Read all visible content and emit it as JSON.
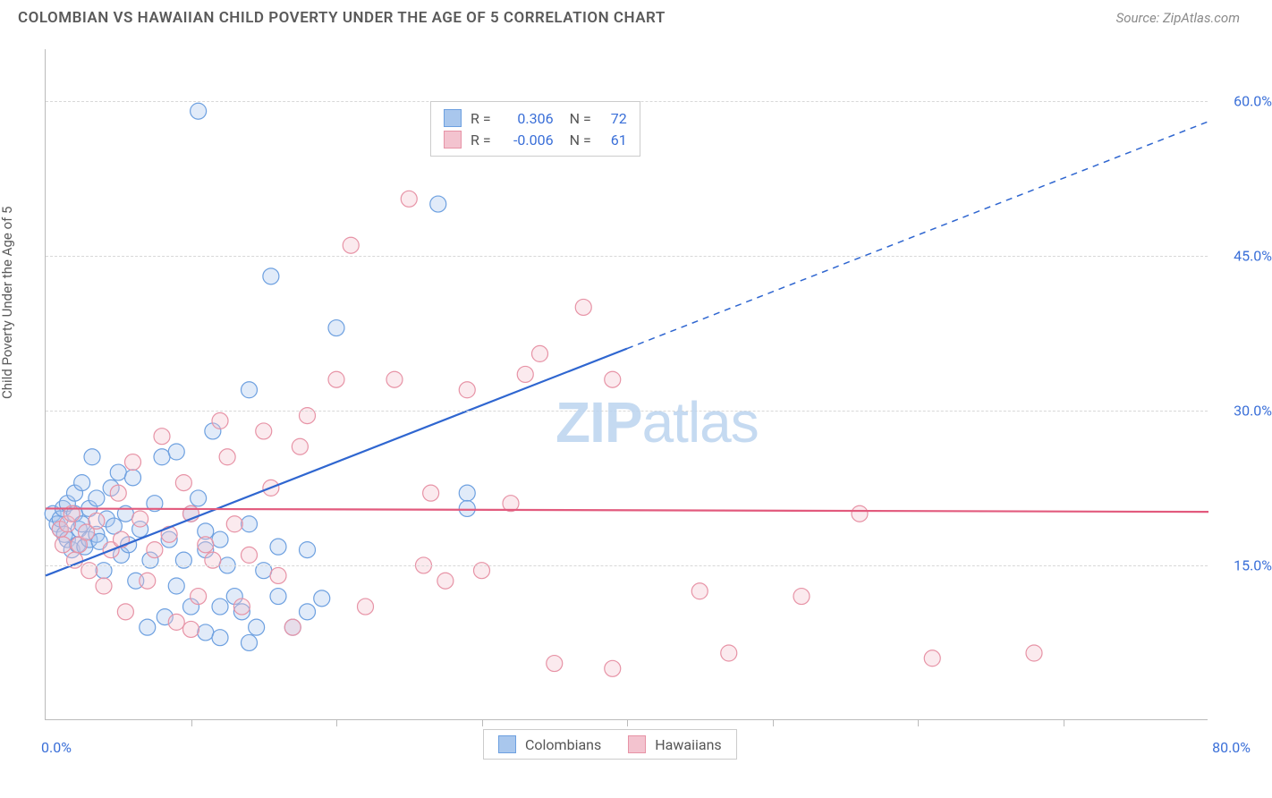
{
  "title": "COLOMBIAN VS HAWAIIAN CHILD POVERTY UNDER THE AGE OF 5 CORRELATION CHART",
  "source_label": "Source: ZipAtlas.com",
  "y_axis_label": "Child Poverty Under the Age of 5",
  "watermark_bold": "ZIP",
  "watermark_rest": "atlas",
  "chart": {
    "type": "scatter",
    "background_color": "#ffffff",
    "grid_color": "#d8d8d8",
    "axis_color": "#bbbbbb",
    "tick_label_color": "#3a6fd8",
    "xlim": [
      0,
      80
    ],
    "ylim": [
      0,
      65
    ],
    "y_ticks": [
      15,
      30,
      45,
      60
    ],
    "y_tick_labels": [
      "15.0%",
      "30.0%",
      "45.0%",
      "60.0%"
    ],
    "x_ticks": [
      10,
      20,
      30,
      40,
      50,
      60,
      70
    ],
    "x_min_label": "0.0%",
    "x_max_label": "80.0%",
    "marker_radius": 9,
    "marker_stroke_width": 1.2,
    "marker_fill_opacity": 0.35,
    "series": [
      {
        "name": "Colombians",
        "color_fill": "#a9c7ed",
        "color_stroke": "#6da0e0",
        "R": "0.306",
        "N": "72",
        "trend": {
          "slope": 0.55,
          "intercept": 14.0,
          "x_solid_end": 40,
          "x_dash_end": 80,
          "color": "#2f66d0",
          "width": 2.2
        },
        "points": [
          [
            0.5,
            20
          ],
          [
            0.8,
            19
          ],
          [
            1,
            18.5
          ],
          [
            1,
            19.5
          ],
          [
            1.2,
            20.5
          ],
          [
            1.3,
            18
          ],
          [
            1.5,
            21
          ],
          [
            1.5,
            17.5
          ],
          [
            1.8,
            16.5
          ],
          [
            2,
            20
          ],
          [
            2,
            22
          ],
          [
            2.2,
            17
          ],
          [
            2.3,
            18.5
          ],
          [
            2.5,
            23
          ],
          [
            2.5,
            19
          ],
          [
            2.7,
            16.8
          ],
          [
            3,
            20.5
          ],
          [
            3,
            17.5
          ],
          [
            3.2,
            25.5
          ],
          [
            3.5,
            18
          ],
          [
            3.5,
            21.5
          ],
          [
            3.7,
            17.3
          ],
          [
            4,
            14.5
          ],
          [
            4.2,
            19.5
          ],
          [
            4.5,
            22.5
          ],
          [
            4.7,
            18.8
          ],
          [
            5,
            24
          ],
          [
            5.2,
            16
          ],
          [
            5.5,
            20
          ],
          [
            5.7,
            17
          ],
          [
            6,
            23.5
          ],
          [
            6.2,
            13.5
          ],
          [
            6.5,
            18.5
          ],
          [
            7,
            9
          ],
          [
            7.2,
            15.5
          ],
          [
            7.5,
            21
          ],
          [
            8,
            25.5
          ],
          [
            8.2,
            10
          ],
          [
            8.5,
            17.5
          ],
          [
            9,
            13
          ],
          [
            9,
            26
          ],
          [
            9.5,
            15.5
          ],
          [
            10,
            11
          ],
          [
            10,
            20
          ],
          [
            10.5,
            21.5
          ],
          [
            10.5,
            59
          ],
          [
            11,
            8.5
          ],
          [
            11,
            16.5
          ],
          [
            11.5,
            28
          ],
          [
            12,
            11
          ],
          [
            12,
            8
          ],
          [
            12,
            17.5
          ],
          [
            12.5,
            15
          ],
          [
            13,
            12
          ],
          [
            13.5,
            10.5
          ],
          [
            14,
            7.5
          ],
          [
            14,
            19
          ],
          [
            14,
            32
          ],
          [
            14.5,
            9
          ],
          [
            15,
            14.5
          ],
          [
            15.5,
            43
          ],
          [
            16,
            12
          ],
          [
            16,
            16.8
          ],
          [
            17,
            9
          ],
          [
            18,
            10.5
          ],
          [
            18,
            16.5
          ],
          [
            19,
            11.8
          ],
          [
            20,
            38
          ],
          [
            27,
            50
          ],
          [
            29,
            22
          ],
          [
            29,
            20.5
          ],
          [
            11,
            18.3
          ]
        ]
      },
      {
        "name": "Hawaiians",
        "color_fill": "#f3c3cf",
        "color_stroke": "#e793a6",
        "R": "-0.006",
        "N": "61",
        "trend": {
          "slope": -0.004,
          "intercept": 20.5,
          "x_solid_end": 80,
          "x_dash_end": 80,
          "color": "#e25a7d",
          "width": 2.2
        },
        "points": [
          [
            1,
            18.5
          ],
          [
            1.2,
            17
          ],
          [
            1.5,
            19
          ],
          [
            2,
            15.5
          ],
          [
            2.3,
            17
          ],
          [
            2.8,
            18.2
          ],
          [
            3,
            14.5
          ],
          [
            3.5,
            19.3
          ],
          [
            4,
            13
          ],
          [
            4.5,
            16.5
          ],
          [
            5,
            22
          ],
          [
            5.2,
            17.5
          ],
          [
            5.5,
            10.5
          ],
          [
            6,
            25
          ],
          [
            6.5,
            19.5
          ],
          [
            7,
            13.5
          ],
          [
            7.5,
            16.5
          ],
          [
            8,
            27.5
          ],
          [
            8.5,
            18
          ],
          [
            9,
            9.5
          ],
          [
            9.5,
            23
          ],
          [
            10,
            20
          ],
          [
            10,
            8.8
          ],
          [
            10.5,
            12
          ],
          [
            11,
            17
          ],
          [
            11.5,
            15.5
          ],
          [
            12,
            29
          ],
          [
            12.5,
            25.5
          ],
          [
            13,
            19
          ],
          [
            13.5,
            11
          ],
          [
            14,
            16
          ],
          [
            15,
            28
          ],
          [
            15.5,
            22.5
          ],
          [
            16,
            14
          ],
          [
            17,
            9
          ],
          [
            17.5,
            26.5
          ],
          [
            18,
            29.5
          ],
          [
            20,
            33
          ],
          [
            21,
            46
          ],
          [
            22,
            11
          ],
          [
            24,
            33
          ],
          [
            25,
            50.5
          ],
          [
            26,
            15
          ],
          [
            26.5,
            22
          ],
          [
            27.5,
            13.5
          ],
          [
            29,
            32
          ],
          [
            30,
            14.5
          ],
          [
            32,
            21
          ],
          [
            33,
            33.5
          ],
          [
            34,
            35.5
          ],
          [
            35,
            5.5
          ],
          [
            37,
            40
          ],
          [
            39,
            33
          ],
          [
            39,
            5
          ],
          [
            45,
            12.5
          ],
          [
            47,
            6.5
          ],
          [
            52,
            12
          ],
          [
            56,
            20
          ],
          [
            61,
            6
          ],
          [
            68,
            6.5
          ],
          [
            1.8,
            20
          ]
        ]
      }
    ],
    "legend_top": {
      "r_label": "R =",
      "n_label": "N ="
    },
    "legend_bottom_labels": [
      "Colombians",
      "Hawaiians"
    ]
  }
}
